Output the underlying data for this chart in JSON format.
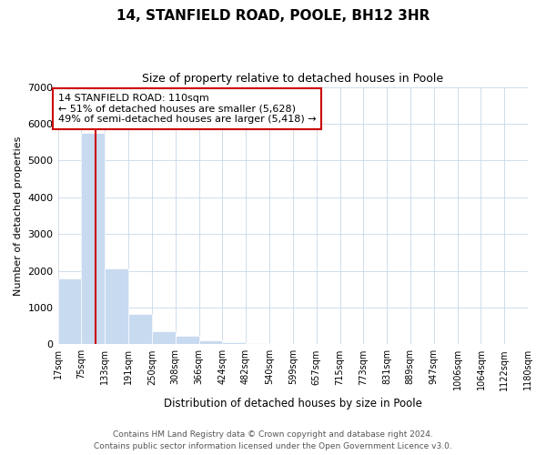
{
  "title": "14, STANFIELD ROAD, POOLE, BH12 3HR",
  "subtitle": "Size of property relative to detached houses in Poole",
  "xlabel": "Distribution of detached houses by size in Poole",
  "ylabel": "Number of detached properties",
  "bar_color": "#c8daf0",
  "vline_x": 110,
  "vline_color": "#cc0000",
  "annotation_line1": "14 STANFIELD ROAD: 110sqm",
  "annotation_line2": "← 51% of detached houses are smaller (5,628)",
  "annotation_line3": "49% of semi-detached houses are larger (5,418) →",
  "annotation_box_color": "#ffffff",
  "annotation_box_edge": "#cc0000",
  "bins": [
    17,
    75,
    133,
    191,
    250,
    308,
    366,
    424,
    482,
    540,
    599,
    657,
    715,
    773,
    831,
    889,
    947,
    1006,
    1064,
    1122,
    1180
  ],
  "heights": [
    1780,
    5750,
    2060,
    820,
    360,
    220,
    100,
    60,
    30,
    10,
    5,
    0,
    0,
    0,
    0,
    0,
    0,
    0,
    0,
    0
  ],
  "ylim": [
    0,
    7000
  ],
  "yticks": [
    0,
    1000,
    2000,
    3000,
    4000,
    5000,
    6000,
    7000
  ],
  "footnote1": "Contains HM Land Registry data © Crown copyright and database right 2024.",
  "footnote2": "Contains public sector information licensed under the Open Government Licence v3.0.",
  "background_color": "#ffffff",
  "grid_color": "#c8d8e8"
}
